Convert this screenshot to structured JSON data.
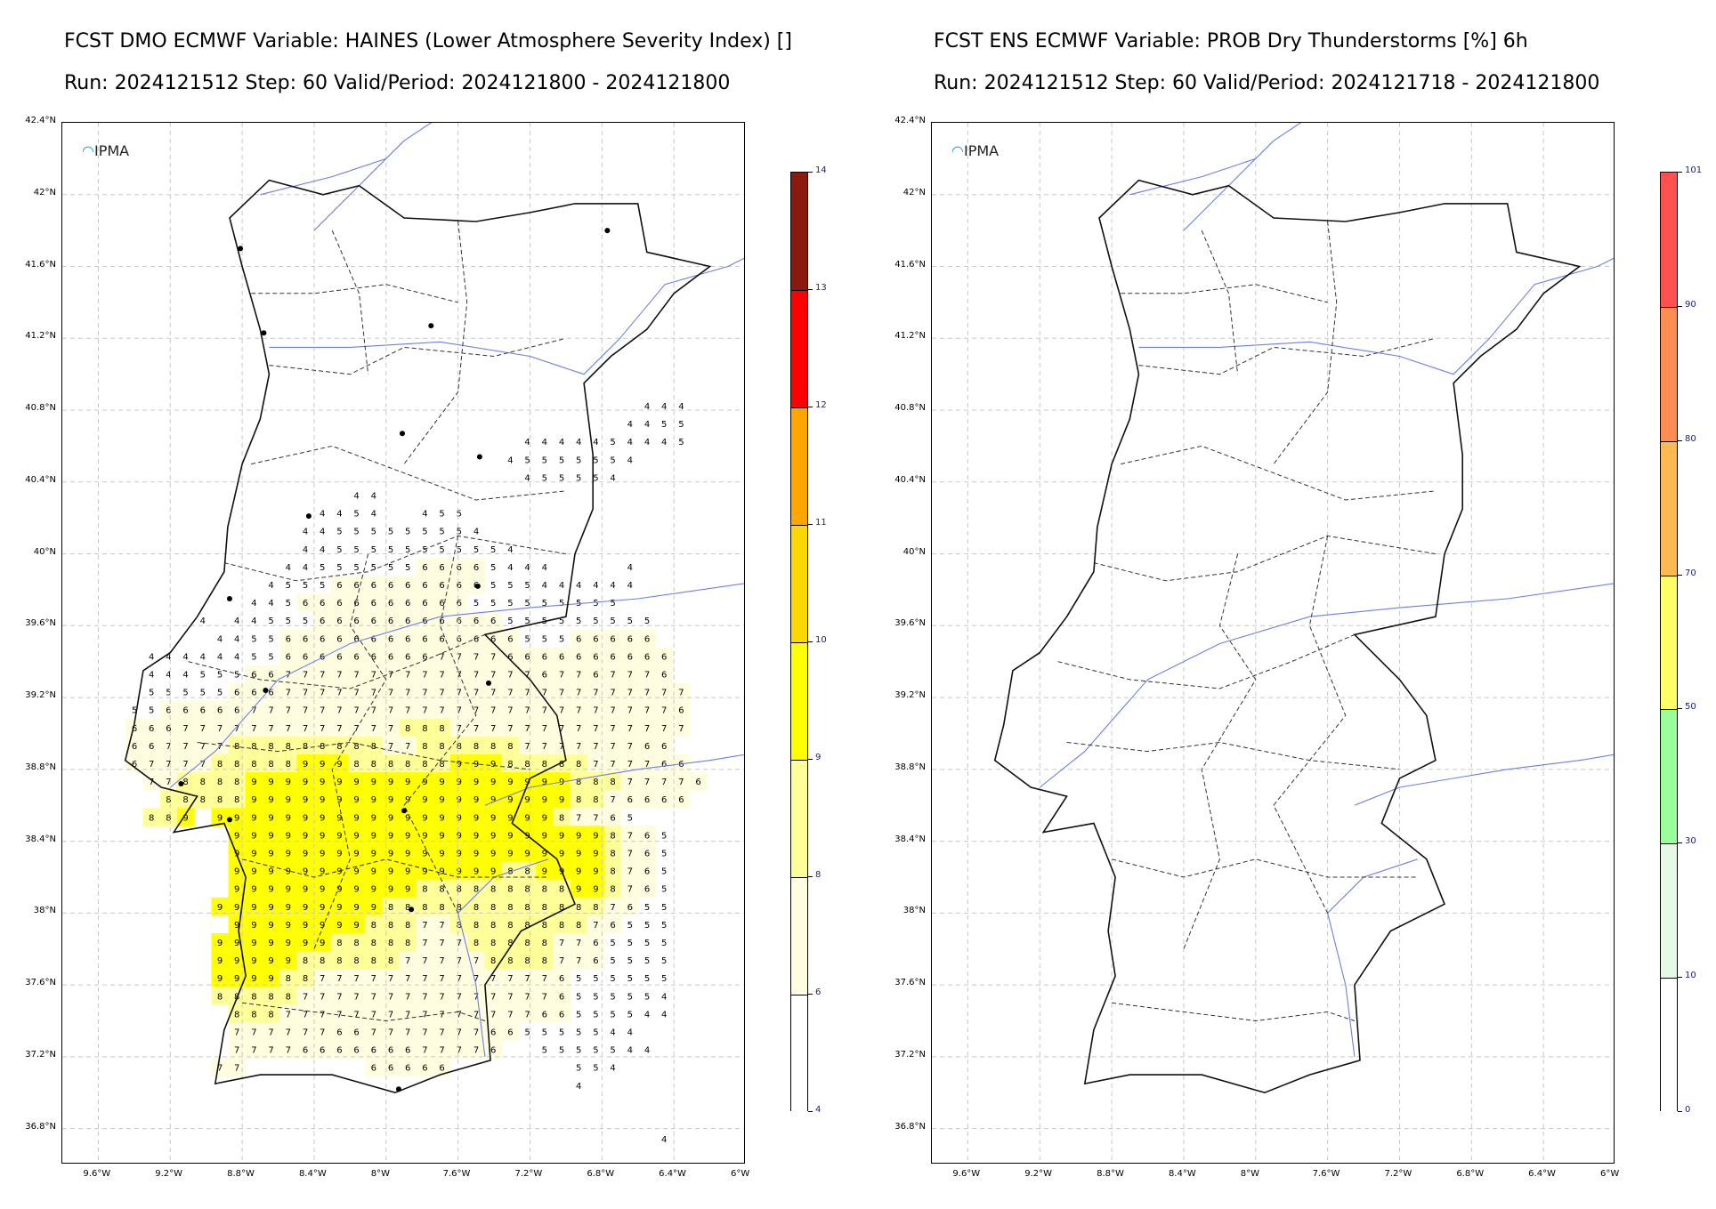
{
  "panels": [
    {
      "title_line1": "FCST DMO ECMWF Variable: HAINES (Lower Atmosphere Severity Index) []",
      "title_line2": "Run: 2024121512 Step: 60 Valid/Period: 2024121800 - 2024121800",
      "logo": "IPMA",
      "colorbar": {
        "ticks": [
          "14",
          "13",
          "12",
          "11",
          "10",
          "9",
          "8",
          "6",
          "4"
        ],
        "colors": [
          "#8b1a0e",
          "#ff0000",
          "#ffa500",
          "#ffd700",
          "#ffff00",
          "#ffff99",
          "#fffde0",
          "#ffffff"
        ]
      },
      "grid_values": [
        {
          "row": 0,
          "start_col": 30,
          "values": "4 4 4"
        },
        {
          "row": 1,
          "start_col": 29,
          "values": "4 4 5 5"
        },
        {
          "row": 2,
          "start_col": 23,
          "values": "4 4 4 4 4 5 4 4 4 5"
        },
        {
          "row": 3,
          "start_col": 22,
          "values": "4 5 5 5 5 5 5 4"
        },
        {
          "row": 4,
          "start_col": 23,
          "values": "4 5 5 5 5 4"
        },
        {
          "row": 5,
          "start_col": 13,
          "values": "4 4"
        },
        {
          "row": 6,
          "start_col": 11,
          "values": "4 4 5 4 _ _ 4 5 5"
        },
        {
          "row": 7,
          "start_col": 10,
          "values": "4 4 5 5 5 5 5 5 5 5 4"
        },
        {
          "row": 8,
          "start_col": 10,
          "values": "4 4 5 5 5 5 5 5 5 5 5 5 4"
        },
        {
          "row": 9,
          "start_col": 9,
          "values": "4 4 5 5 5 5 5 5 6 6 6 6 5 4 4 4 _ _ _ _ 4"
        },
        {
          "row": 10,
          "start_col": 8,
          "values": "4 5 5 5 6 6 6 6 6 6 6 6 6 5 5 5 4 4 4 4 4 4"
        },
        {
          "row": 11,
          "start_col": 7,
          "values": "4 4 5 6 6 6 6 6 6 6 6 6 6 5 5 5 5 5 5 5 5 5"
        },
        {
          "row": 12,
          "start_col": 4,
          "values": "4 _ 4 4 5 5 5 6 6 6 6 6 6 6 6 6 6 6 5 5 5 5 5 5 5 5 5"
        },
        {
          "row": 13,
          "start_col": 5,
          "values": "4 4 5 5 6 6 6 6 6 6 6 6 6 6 6 6 6 6 5 5 5 6 6 6 6 6"
        },
        {
          "row": 14,
          "start_col": 1,
          "values": "4 4 4 4 4 4 5 5 6 6 6 6 6 6 6 6 6 7 7 7 7 6 6 6 6 6 6 6 6 6 6"
        },
        {
          "row": 15,
          "start_col": 1,
          "values": "4 4 4 5 5 5 6 6 7 7 7 7 7 7 7 7 7 7 7 7 7 7 7 6 7 7 6 7 7 7 6"
        },
        {
          "row": 16,
          "start_col": 1,
          "values": "5 5 5 5 5 6 6 6 7 7 7 7 7 7 7 7 7 7 7 7 7 7 7 7 7 7 7 7 7 7 7 7"
        },
        {
          "row": 17,
          "start_col": 0,
          "values": "5 5 6 6 6 6 6 7 7 7 7 7 7 7 7 7 7 7 7 7 7 7 7 7 7 7 7 7 7 7 7 7 6"
        },
        {
          "row": 18,
          "start_col": 0,
          "values": "6 6 6 7 7 7 7 7 7 7 7 7 7 7 7 7 8 8 8 7 7 7 7 7 7 7 7 7 7 7 7 7 7"
        },
        {
          "row": 19,
          "start_col": 0,
          "values": "6 6 7 7 7 7 8 8 8 8 8 8 8 8 8 7 7 8 8 8 8 8 8 7 7 7 7 7 7 7 6 6"
        },
        {
          "row": 20,
          "start_col": 0,
          "values": "6 7 7 7 7 8 8 8 8 8 9 9 9 8 8 8 8 8 8 9 9 9 8 8 8 8 8 7 7 7 7 6 6"
        },
        {
          "row": 21,
          "start_col": 1,
          "values": "7 7 8 8 8 8 9 9 9 9 9 9 9 9 9 9 9 9 9 9 9 9 9 9 9 8 8 8 7 7 7 7 6"
        },
        {
          "row": 22,
          "start_col": 2,
          "values": "8 8 8 8 8 9 9 9 9 9 9 9 9 9 9 9 9 9 9 9 9 9 9 9 8 8 7 6 6 6 6"
        },
        {
          "row": 23,
          "start_col": 1,
          "values": "8 8 9 _ 9 9 9 9 9 9 9 9 9 9 9 9 9 9 9 9 9 9 9 9 8 7 7 6 5"
        },
        {
          "row": 24,
          "start_col": 6,
          "values": "9 9 9 9 9 9 9 9 9 9 9 9 9 9 9 9 9 9 9 9 9 9 8 7 6 5"
        },
        {
          "row": 25,
          "start_col": 6,
          "values": "9 9 9 9 9 9 9 9 9 9 9 9 9 9 9 9 9 9 9 9 9 9 8 7 6 5"
        },
        {
          "row": 26,
          "start_col": 6,
          "values": "9 9 9 9 9 9 9 9 9 9 9 9 9 9 9 9 8 8 9 9 9 9 8 7 6 5"
        },
        {
          "row": 27,
          "start_col": 6,
          "values": "9 9 9 9 9 9 9 9 9 9 9 8 8 8 8 8 8 8 8 8 9 9 8 7 6 5"
        },
        {
          "row": 28,
          "start_col": 5,
          "values": "9 9 9 9 9 9 9 9 9 9 8 8 8 8 8 8 8 8 8 8 8 8 8 7 6 5 5"
        },
        {
          "row": 29,
          "start_col": 6,
          "values": "9 9 9 9 9 9 9 9 8 8 8 7 7 8 8 8 8 8 8 8 8 7 6 5 5 5"
        },
        {
          "row": 30,
          "start_col": 5,
          "values": "9 9 9 9 9 9 9 8 8 8 8 8 7 7 7 8 8 8 8 8 7 7 6 5 5 5 5"
        },
        {
          "row": 31,
          "start_col": 5,
          "values": "9 9 9 9 9 8 8 8 8 8 8 7 7 7 7 7 8 8 8 8 7 7 6 5 5 5 5"
        },
        {
          "row": 32,
          "start_col": 5,
          "values": "9 9 9 9 8 8 7 7 7 7 7 7 7 7 7 7 7 7 7 7 6 5 5 5 5 5 5"
        },
        {
          "row": 33,
          "start_col": 5,
          "values": "8 8 8 8 8 7 7 7 7 7 7 7 7 7 7 7 7 7 7 7 6 5 5 5 5 5 4"
        },
        {
          "row": 34,
          "start_col": 6,
          "values": "8 8 8 7 7 7 7 7 7 7 7 7 7 7 7 7 7 7 6 6 5 5 5 5 4 4"
        },
        {
          "row": 35,
          "start_col": 6,
          "values": "7 7 7 7 7 7 6 6 7 7 7 7 7 7 7 6 6 5 5 5 5 5 4 4"
        },
        {
          "row": 36,
          "start_col": 6,
          "values": "7 7 7 7 6 6 6 6 6 6 6 7 7 7 7 6 _ _ 5 5 5 5 5 4 4"
        },
        {
          "row": 37,
          "start_col": 5,
          "values": "7 7 _ _ _ _ _ _ _ 6 6 6 6 6 _ _ _ _ _ _ _ 5 5 4"
        },
        {
          "row": 38,
          "start_col": 26,
          "values": "4"
        },
        {
          "row": 41,
          "start_col": 31,
          "values": "4"
        }
      ]
    },
    {
      "title_line1": "FCST ENS ECMWF Variable: PROB Dry Thunderstorms [%] 6h",
      "title_line2": "Run: 2024121512 Step: 60 Valid/Period: 2024121718 - 2024121800",
      "logo": "IPMA",
      "colorbar": {
        "ticks": [
          "101",
          "90",
          "80",
          "70",
          "50",
          "30",
          "10",
          "0"
        ],
        "colors": [
          "#ff5050",
          "#ff8c50",
          "#ffb950",
          "#ffff66",
          "#99ff99",
          "#e5f9e5",
          "#ffffff"
        ]
      }
    }
  ],
  "axes": {
    "lat_labels": [
      "42.4°N",
      "42°N",
      "41.6°N",
      "41.2°N",
      "40.8°N",
      "40.4°N",
      "40°N",
      "39.6°N",
      "39.2°N",
      "38.8°N",
      "38.4°N",
      "38°N",
      "37.6°N",
      "37.2°N",
      "36.8°N"
    ],
    "lon_labels": [
      "9.6°W",
      "9.2°W",
      "8.8°W",
      "8.4°W",
      "8°W",
      "7.6°W",
      "7.2°W",
      "6.8°W",
      "6.4°W",
      "6°W"
    ]
  }
}
